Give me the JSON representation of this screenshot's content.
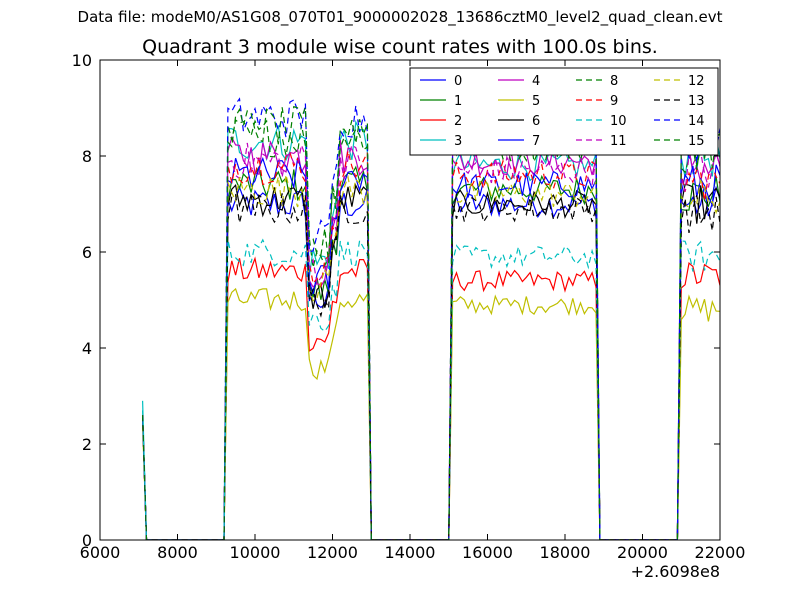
{
  "header": {
    "file_line": "Data file: modeM0/AS1G08_070T01_9000002028_13686cztM0_level2_quad_clean.evt"
  },
  "chart_data": {
    "type": "line",
    "title": "Quadrant 3 module wise count rates with 100.0s bins.",
    "xlabel": "",
    "ylabel": "",
    "xlim": [
      6000,
      22000
    ],
    "ylim": [
      0,
      10
    ],
    "x_ticks": [
      6000,
      8000,
      10000,
      12000,
      14000,
      16000,
      18000,
      20000,
      22000
    ],
    "y_ticks": [
      0,
      2,
      4,
      6,
      8,
      10
    ],
    "x_offset_label": "+2.6098e8",
    "grid": false,
    "legend_position": "top-right",
    "legend_columns": 4,
    "segments": [
      {
        "x_start": 7100,
        "x_end": 7200,
        "note": "short spike"
      },
      {
        "x_start": 9300,
        "x_end": 13000
      },
      {
        "x_start": 15100,
        "x_end": 18900
      },
      {
        "x_start": 21000,
        "x_end": 22000
      }
    ],
    "series": [
      {
        "name": "0",
        "color": "#0000ff",
        "dashed": false,
        "spike": 2.6,
        "seg1": 7.0,
        "seg1_dip": 5.0,
        "seg2": 7.0,
        "seg3": 7.0
      },
      {
        "name": "1",
        "color": "#008000",
        "dashed": false,
        "spike": 2.6,
        "seg1": 7.4,
        "seg1_dip": 5.2,
        "seg2": 7.3,
        "seg3": 7.2
      },
      {
        "name": "2",
        "color": "#ff0000",
        "dashed": false,
        "spike": 2.5,
        "seg1": 5.6,
        "seg1_dip": 4.2,
        "seg2": 5.4,
        "seg3": 5.5
      },
      {
        "name": "3",
        "color": "#00bfbf",
        "dashed": false,
        "spike": 2.9,
        "seg1": 8.3,
        "seg1_dip": 5.8,
        "seg2": 7.8,
        "seg3": 8.0
      },
      {
        "name": "4",
        "color": "#bf00bf",
        "dashed": false,
        "spike": 2.6,
        "seg1": 8.0,
        "seg1_dip": 5.6,
        "seg2": 7.9,
        "seg3": 7.8
      },
      {
        "name": "5",
        "color": "#bfbf00",
        "dashed": false,
        "spike": 2.4,
        "seg1": 5.0,
        "seg1_dip": 3.6,
        "seg2": 4.9,
        "seg3": 4.8
      },
      {
        "name": "6",
        "color": "#000000",
        "dashed": false,
        "spike": 2.6,
        "seg1": 7.1,
        "seg1_dip": 5.1,
        "seg2": 7.0,
        "seg3": 7.0
      },
      {
        "name": "7",
        "color": "#0000ff",
        "dashed": false,
        "spike": 2.6,
        "seg1": 7.6,
        "seg1_dip": 5.4,
        "seg2": 7.4,
        "seg3": 7.4
      },
      {
        "name": "8",
        "color": "#008000",
        "dashed": true,
        "spike": 2.6,
        "seg1": 8.4,
        "seg1_dip": 6.0,
        "seg2": 8.2,
        "seg3": 8.1
      },
      {
        "name": "9",
        "color": "#ff0000",
        "dashed": true,
        "spike": 2.6,
        "seg1": 7.8,
        "seg1_dip": 5.6,
        "seg2": 7.6,
        "seg3": 7.5
      },
      {
        "name": "10",
        "color": "#00bfbf",
        "dashed": true,
        "spike": 2.7,
        "seg1": 6.0,
        "seg1_dip": 4.6,
        "seg2": 5.9,
        "seg3": 5.9
      },
      {
        "name": "11",
        "color": "#bf00bf",
        "dashed": true,
        "spike": 2.6,
        "seg1": 7.9,
        "seg1_dip": 5.7,
        "seg2": 7.7,
        "seg3": 7.7
      },
      {
        "name": "12",
        "color": "#bfbf00",
        "dashed": true,
        "spike": 2.6,
        "seg1": 7.3,
        "seg1_dip": 5.3,
        "seg2": 7.2,
        "seg3": 7.1
      },
      {
        "name": "13",
        "color": "#000000",
        "dashed": true,
        "spike": 2.6,
        "seg1": 6.9,
        "seg1_dip": 5.0,
        "seg2": 6.9,
        "seg3": 6.8
      },
      {
        "name": "14",
        "color": "#0000ff",
        "dashed": true,
        "spike": 2.6,
        "seg1": 8.8,
        "seg1_dip": 6.3,
        "seg2": 8.5,
        "seg3": 8.3
      },
      {
        "name": "15",
        "color": "#008000",
        "dashed": true,
        "spike": 2.6,
        "seg1": 8.6,
        "seg1_dip": 6.1,
        "seg2": 8.3,
        "seg3": 8.2
      }
    ]
  }
}
